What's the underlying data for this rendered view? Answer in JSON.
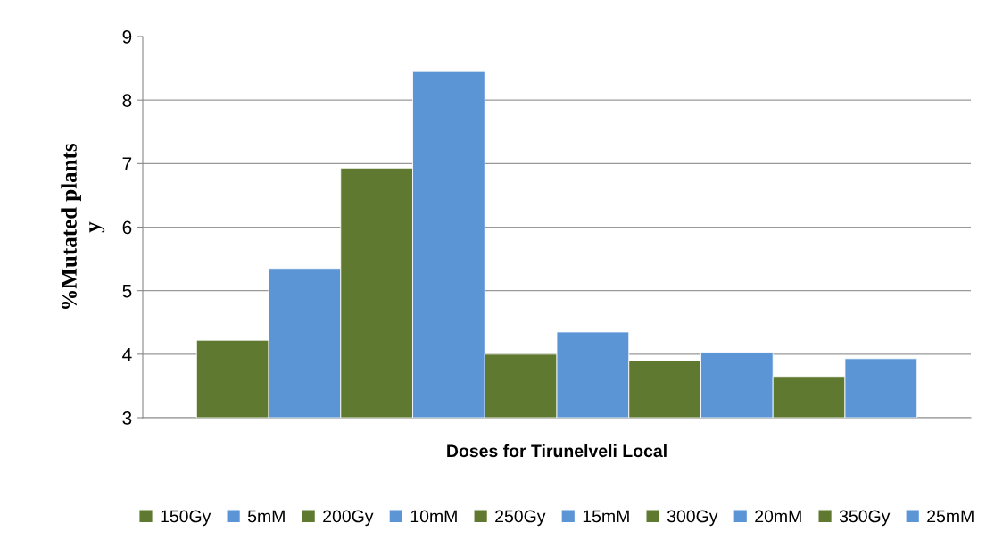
{
  "chart_data": {
    "type": "bar",
    "categories": [
      null
    ],
    "xlabel": "Doses for Tirunelveli Local",
    "ylabel": "%Mutated plants\ny",
    "ylim": [
      3,
      9
    ],
    "yticks": [
      3,
      4,
      5,
      6,
      7,
      8,
      9
    ],
    "grid": "y",
    "legend": "bottom",
    "series": [
      {
        "name": "150Gy",
        "color": "#5f7a30",
        "values": [
          4.22
        ]
      },
      {
        "name": "5mM",
        "color": "#5b95d5",
        "values": [
          5.35
        ]
      },
      {
        "name": "200Gy",
        "color": "#5f7a30",
        "values": [
          6.93
        ]
      },
      {
        "name": "10mM",
        "color": "#5b95d5",
        "values": [
          8.45
        ]
      },
      {
        "name": "250Gy",
        "color": "#5f7a30",
        "values": [
          4.0
        ]
      },
      {
        "name": "15mM",
        "color": "#5b95d5",
        "values": [
          4.35
        ]
      },
      {
        "name": "300Gy",
        "color": "#5f7a30",
        "values": [
          3.9
        ]
      },
      {
        "name": "20mM",
        "color": "#5b95d5",
        "values": [
          4.03
        ]
      },
      {
        "name": "350Gy",
        "color": "#5f7a30",
        "values": [
          3.65
        ]
      },
      {
        "name": "25mM",
        "color": "#5b95d5",
        "values": [
          3.93
        ]
      }
    ]
  }
}
